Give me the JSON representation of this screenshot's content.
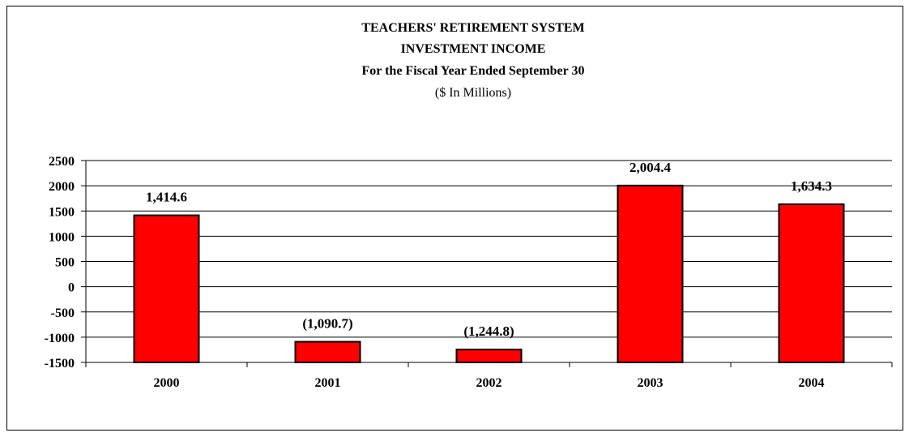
{
  "chart_data": {
    "type": "bar",
    "title_lines": [
      "TEACHERS' RETIREMENT SYSTEM",
      "INVESTMENT INCOME",
      "For the Fiscal Year Ended September 30"
    ],
    "subtitle": "($ In Millions)",
    "categories": [
      "2000",
      "2001",
      "2002",
      "2003",
      "2004"
    ],
    "values": [
      1414.6,
      -1090.7,
      -1244.8,
      2004.4,
      1634.3
    ],
    "data_labels": [
      "1,414.6",
      "(1,090.7)",
      "(1,244.8)",
      "2,004.4",
      "1,634.3"
    ],
    "yticks": [
      "2500",
      "2000",
      "1500",
      "1000",
      "500",
      "0",
      "-500",
      "-1000",
      "-1500"
    ],
    "ylim": [
      -1500,
      2500
    ],
    "grid": true,
    "bar_color": "#ff0000",
    "bar_edge_color": "#000000",
    "xlabel": "",
    "ylabel": ""
  }
}
